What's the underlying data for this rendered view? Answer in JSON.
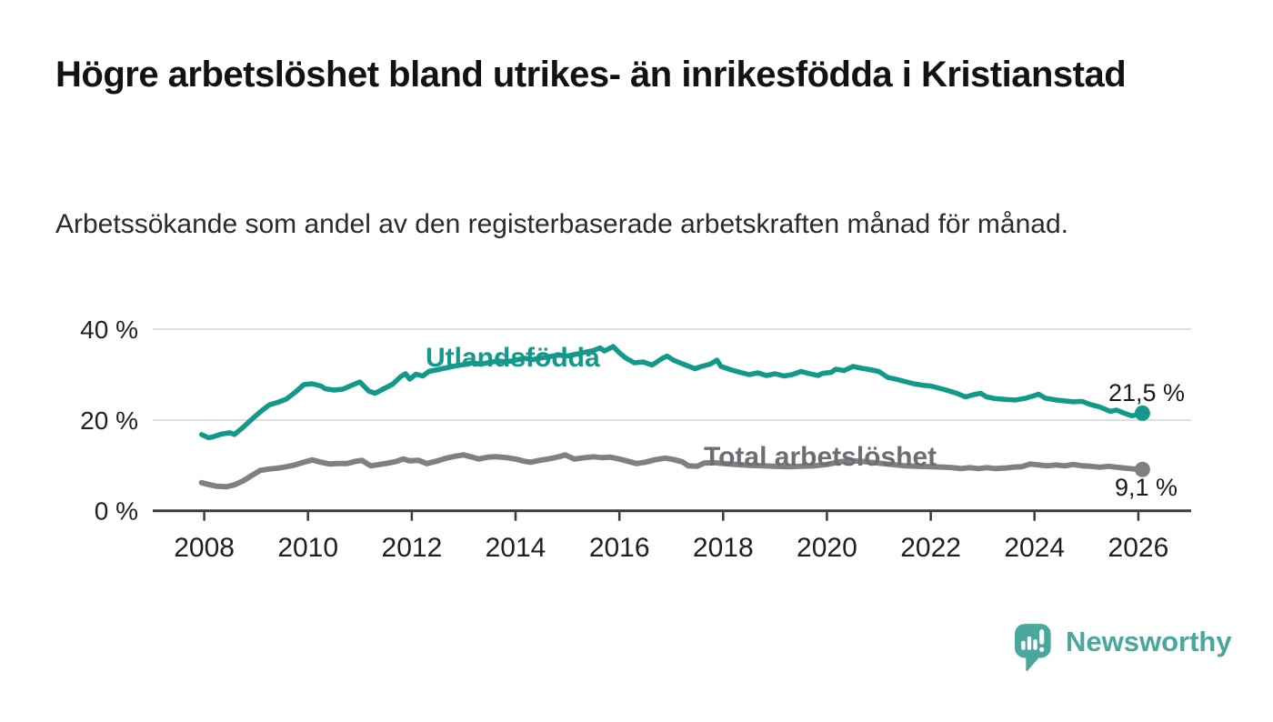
{
  "header": {
    "title": "Högre arbetslöshet bland utrikes- än inrikesfödda i Kristianstad",
    "subtitle": "Arbetssökande som andel av den registerbaserade arbetskraften månad för månad."
  },
  "colors": {
    "foreign_line": "#12998a",
    "total_line": "#808084",
    "total_label": "#6d6d72",
    "grid": "#d8d8d8",
    "axis": "#3a3a3a",
    "axis_text": "#1f1f1f",
    "value_text": "#1a1a1a",
    "brand": "#4aa79b"
  },
  "chart_data": {
    "type": "line",
    "title": "Högre arbetslöshet bland utrikes- än inrikesfödda i Kristianstad",
    "subtitle": "Arbetssökande som andel av den registerbaserade arbetskraften månad för månad.",
    "xlabel": "",
    "ylabel": "",
    "grid": "horizontal",
    "legend_position": "inline-labels",
    "xlim": [
      2007.8,
      2027.0
    ],
    "ylim": [
      0,
      40
    ],
    "x_ticks": [
      2008,
      2010,
      2012,
      2014,
      2016,
      2018,
      2020,
      2022,
      2024,
      2026
    ],
    "y_ticks": [
      {
        "value": 0,
        "label": "0 %"
      },
      {
        "value": 20,
        "label": "20 %"
      },
      {
        "value": 40,
        "label": "40 %"
      }
    ],
    "series": [
      {
        "name": "Utlandsfödda",
        "color": "#12998a",
        "end_label": "21,5 %",
        "end_value": 21.5,
        "points": [
          [
            2007.95,
            16.8
          ],
          [
            2008.08,
            16.1
          ],
          [
            2008.17,
            16.3
          ],
          [
            2008.33,
            16.9
          ],
          [
            2008.5,
            17.2
          ],
          [
            2008.58,
            16.8
          ],
          [
            2008.75,
            18.4
          ],
          [
            2008.92,
            20.2
          ],
          [
            2009.08,
            21.8
          ],
          [
            2009.25,
            23.3
          ],
          [
            2009.42,
            23.9
          ],
          [
            2009.58,
            24.6
          ],
          [
            2009.75,
            26.1
          ],
          [
            2009.92,
            27.8
          ],
          [
            2010.08,
            28.0
          ],
          [
            2010.25,
            27.5
          ],
          [
            2010.33,
            26.9
          ],
          [
            2010.5,
            26.6
          ],
          [
            2010.67,
            26.8
          ],
          [
            2010.83,
            27.6
          ],
          [
            2011.0,
            28.4
          ],
          [
            2011.17,
            26.4
          ],
          [
            2011.29,
            25.9
          ],
          [
            2011.46,
            26.9
          ],
          [
            2011.63,
            27.9
          ],
          [
            2011.79,
            29.6
          ],
          [
            2011.88,
            30.2
          ],
          [
            2011.96,
            29.0
          ],
          [
            2012.08,
            30.1
          ],
          [
            2012.21,
            29.7
          ],
          [
            2012.33,
            30.7
          ],
          [
            2012.5,
            31.1
          ],
          [
            2012.67,
            31.5
          ],
          [
            2012.83,
            31.9
          ],
          [
            2013.0,
            32.2
          ],
          [
            2013.17,
            32.6
          ],
          [
            2013.33,
            32.3
          ],
          [
            2013.5,
            32.7
          ],
          [
            2013.67,
            33.0
          ],
          [
            2013.83,
            32.8
          ],
          [
            2014.0,
            33.2
          ],
          [
            2014.17,
            33.6
          ],
          [
            2014.33,
            33.3
          ],
          [
            2014.5,
            33.7
          ],
          [
            2014.67,
            34.0
          ],
          [
            2014.83,
            34.3
          ],
          [
            2015.0,
            34.1
          ],
          [
            2015.17,
            34.5
          ],
          [
            2015.33,
            34.9
          ],
          [
            2015.5,
            35.3
          ],
          [
            2015.63,
            35.9
          ],
          [
            2015.71,
            35.2
          ],
          [
            2015.88,
            36.2
          ],
          [
            2016.0,
            34.8
          ],
          [
            2016.13,
            33.6
          ],
          [
            2016.29,
            32.6
          ],
          [
            2016.46,
            32.8
          ],
          [
            2016.63,
            32.1
          ],
          [
            2016.83,
            33.6
          ],
          [
            2016.92,
            34.1
          ],
          [
            2017.04,
            33.2
          ],
          [
            2017.21,
            32.4
          ],
          [
            2017.46,
            31.3
          ],
          [
            2017.58,
            31.8
          ],
          [
            2017.75,
            32.3
          ],
          [
            2017.88,
            33.2
          ],
          [
            2017.96,
            31.8
          ],
          [
            2018.17,
            31.0
          ],
          [
            2018.33,
            30.5
          ],
          [
            2018.5,
            30.0
          ],
          [
            2018.67,
            30.4
          ],
          [
            2018.83,
            29.8
          ],
          [
            2019.0,
            30.2
          ],
          [
            2019.17,
            29.7
          ],
          [
            2019.33,
            30.0
          ],
          [
            2019.5,
            30.7
          ],
          [
            2019.67,
            30.2
          ],
          [
            2019.83,
            29.8
          ],
          [
            2019.92,
            30.3
          ],
          [
            2020.08,
            30.5
          ],
          [
            2020.17,
            31.2
          ],
          [
            2020.33,
            30.9
          ],
          [
            2020.5,
            31.8
          ],
          [
            2020.67,
            31.4
          ],
          [
            2020.83,
            31.1
          ],
          [
            2021.0,
            30.7
          ],
          [
            2021.17,
            29.4
          ],
          [
            2021.33,
            29.0
          ],
          [
            2021.5,
            28.5
          ],
          [
            2021.67,
            28.0
          ],
          [
            2021.83,
            27.7
          ],
          [
            2022.0,
            27.5
          ],
          [
            2022.17,
            27.0
          ],
          [
            2022.33,
            26.5
          ],
          [
            2022.5,
            25.9
          ],
          [
            2022.67,
            25.1
          ],
          [
            2022.83,
            25.6
          ],
          [
            2022.96,
            25.9
          ],
          [
            2023.08,
            25.1
          ],
          [
            2023.25,
            24.7
          ],
          [
            2023.46,
            24.5
          ],
          [
            2023.63,
            24.4
          ],
          [
            2023.83,
            24.8
          ],
          [
            2024.0,
            25.4
          ],
          [
            2024.08,
            25.7
          ],
          [
            2024.21,
            24.8
          ],
          [
            2024.42,
            24.4
          ],
          [
            2024.58,
            24.2
          ],
          [
            2024.75,
            24.0
          ],
          [
            2024.92,
            24.1
          ],
          [
            2025.08,
            23.4
          ],
          [
            2025.25,
            22.9
          ],
          [
            2025.46,
            21.9
          ],
          [
            2025.58,
            22.2
          ],
          [
            2025.71,
            21.6
          ],
          [
            2025.88,
            20.9
          ],
          [
            2026.08,
            21.5
          ]
        ]
      },
      {
        "name": "Total arbetslöshet",
        "color": "#808084",
        "end_label": "9,1 %",
        "end_value": 9.1,
        "points": [
          [
            2007.95,
            6.2
          ],
          [
            2008.08,
            5.8
          ],
          [
            2008.25,
            5.4
          ],
          [
            2008.42,
            5.3
          ],
          [
            2008.58,
            5.7
          ],
          [
            2008.75,
            6.6
          ],
          [
            2008.92,
            7.8
          ],
          [
            2009.08,
            8.9
          ],
          [
            2009.25,
            9.2
          ],
          [
            2009.42,
            9.4
          ],
          [
            2009.58,
            9.7
          ],
          [
            2009.75,
            10.1
          ],
          [
            2009.92,
            10.7
          ],
          [
            2010.08,
            11.2
          ],
          [
            2010.25,
            10.7
          ],
          [
            2010.42,
            10.3
          ],
          [
            2010.58,
            10.4
          ],
          [
            2010.75,
            10.4
          ],
          [
            2010.92,
            10.9
          ],
          [
            2011.04,
            11.1
          ],
          [
            2011.21,
            9.9
          ],
          [
            2011.38,
            10.2
          ],
          [
            2011.54,
            10.5
          ],
          [
            2011.71,
            10.9
          ],
          [
            2011.83,
            11.4
          ],
          [
            2011.96,
            11.0
          ],
          [
            2012.13,
            11.1
          ],
          [
            2012.29,
            10.4
          ],
          [
            2012.5,
            11.0
          ],
          [
            2012.67,
            11.6
          ],
          [
            2012.83,
            12.0
          ],
          [
            2013.0,
            12.3
          ],
          [
            2013.17,
            11.8
          ],
          [
            2013.29,
            11.4
          ],
          [
            2013.46,
            11.8
          ],
          [
            2013.63,
            11.9
          ],
          [
            2013.83,
            11.7
          ],
          [
            2014.0,
            11.4
          ],
          [
            2014.17,
            10.9
          ],
          [
            2014.29,
            10.7
          ],
          [
            2014.46,
            11.1
          ],
          [
            2014.67,
            11.5
          ],
          [
            2014.83,
            11.9
          ],
          [
            2014.96,
            12.3
          ],
          [
            2015.13,
            11.4
          ],
          [
            2015.33,
            11.7
          ],
          [
            2015.5,
            11.9
          ],
          [
            2015.67,
            11.7
          ],
          [
            2015.83,
            11.8
          ],
          [
            2016.0,
            11.4
          ],
          [
            2016.17,
            10.9
          ],
          [
            2016.33,
            10.4
          ],
          [
            2016.5,
            10.7
          ],
          [
            2016.67,
            11.2
          ],
          [
            2016.88,
            11.6
          ],
          [
            2017.04,
            11.3
          ],
          [
            2017.21,
            10.8
          ],
          [
            2017.33,
            9.9
          ],
          [
            2017.5,
            9.8
          ],
          [
            2017.63,
            10.5
          ],
          [
            2017.83,
            10.6
          ],
          [
            2018.0,
            10.4
          ],
          [
            2018.25,
            10.2
          ],
          [
            2018.5,
            10.0
          ],
          [
            2018.75,
            9.9
          ],
          [
            2019.0,
            9.8
          ],
          [
            2019.25,
            9.7
          ],
          [
            2019.5,
            9.8
          ],
          [
            2019.75,
            9.9
          ],
          [
            2020.0,
            10.2
          ],
          [
            2020.25,
            10.8
          ],
          [
            2020.5,
            11.0
          ],
          [
            2020.75,
            10.8
          ],
          [
            2021.0,
            10.5
          ],
          [
            2021.25,
            10.2
          ],
          [
            2021.5,
            9.9
          ],
          [
            2021.75,
            9.8
          ],
          [
            2022.0,
            9.7
          ],
          [
            2022.25,
            9.6
          ],
          [
            2022.42,
            9.5
          ],
          [
            2022.58,
            9.3
          ],
          [
            2022.75,
            9.5
          ],
          [
            2022.92,
            9.3
          ],
          [
            2023.08,
            9.5
          ],
          [
            2023.25,
            9.3
          ],
          [
            2023.42,
            9.4
          ],
          [
            2023.58,
            9.6
          ],
          [
            2023.75,
            9.7
          ],
          [
            2023.92,
            10.3
          ],
          [
            2024.08,
            10.1
          ],
          [
            2024.25,
            9.9
          ],
          [
            2024.42,
            10.1
          ],
          [
            2024.58,
            9.9
          ],
          [
            2024.75,
            10.2
          ],
          [
            2024.92,
            9.9
          ],
          [
            2025.08,
            9.8
          ],
          [
            2025.25,
            9.6
          ],
          [
            2025.42,
            9.8
          ],
          [
            2025.58,
            9.6
          ],
          [
            2025.75,
            9.4
          ],
          [
            2025.92,
            9.2
          ],
          [
            2026.08,
            9.1
          ]
        ]
      }
    ]
  },
  "footer": {
    "brand_name": "Newsworthy"
  }
}
